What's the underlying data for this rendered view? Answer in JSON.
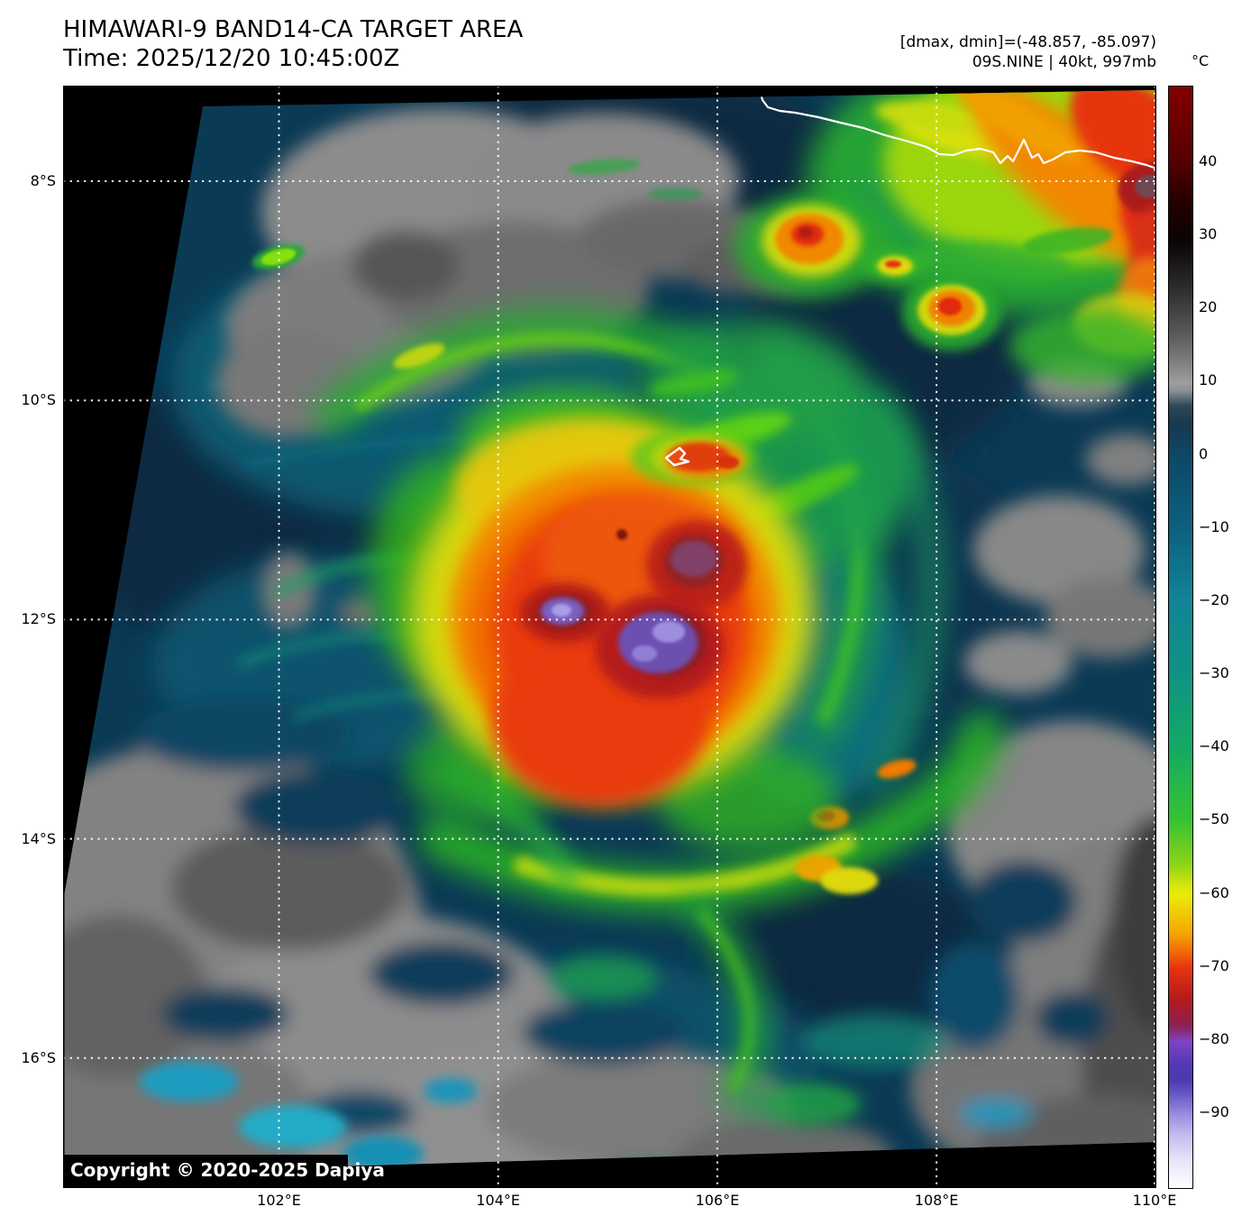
{
  "header": {
    "title": "HIMAWARI-9 BAND14-CA TARGET AREA",
    "time_line": "Time: 2025/12/20 10:45:00Z",
    "dmax_dmin": "[dmax, dmin]=(-48.857, -85.097)",
    "storm_info": "09S.NINE | 40kt, 997mb"
  },
  "map": {
    "lat_ticks": [
      "8°S",
      "10°S",
      "12°S",
      "14°S",
      "16°S"
    ],
    "lon_ticks": [
      "102°E",
      "104°E",
      "106°E",
      "108°E",
      "110°E"
    ],
    "copyright": "Copyright © 2020-2025 Dapiya"
  },
  "colorbar": {
    "unit": "°C",
    "ticks": [
      "40",
      "30",
      "20",
      "10",
      "0",
      "−10",
      "−20",
      "−30",
      "−40",
      "−50",
      "−60",
      "−70",
      "−80",
      "−90"
    ],
    "range_top_c": 50,
    "range_bottom_c": -100
  },
  "colors": {
    "page_bg": "#ffffff",
    "frame": "#000000",
    "no_data_black": "#000000",
    "ocean_navy": "#0b3a55",
    "low_cloud_gray": "#8c8c8c",
    "band_green": "#2cb41e",
    "cold_yellow": "#d8d80a",
    "cold_orange": "#f08800",
    "cold_red": "#e63410",
    "coldest_purple": "#6a55c0",
    "gridline_white": "#ffffff",
    "coastline_white": "#ffffff"
  }
}
